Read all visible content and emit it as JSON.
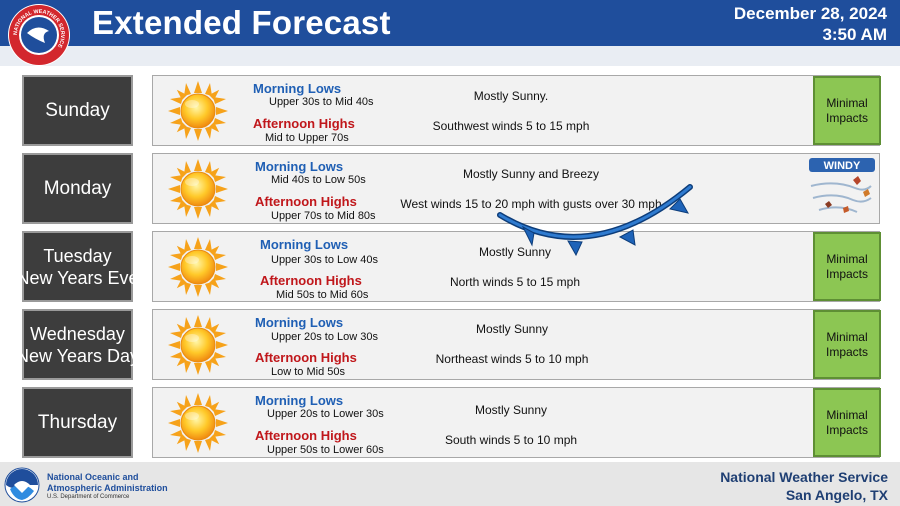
{
  "header": {
    "title": "Extended Forecast",
    "date": "December 28, 2024",
    "time": "3:50 AM",
    "logo_text": "NATIONAL WEATHER SERVICE",
    "bar_color": "#1f4e9c"
  },
  "labels": {
    "morning": "Morning Lows",
    "afternoon": "Afternoon Highs"
  },
  "days": [
    {
      "name_lines": [
        "Sunday"
      ],
      "low": "Upper 30s to Mid 40s",
      "high": "Mid to Upper 70s",
      "sky": "Mostly Sunny.",
      "wind": "Southwest winds 5 to 15 mph",
      "impact": [
        "Minimal",
        "Impacts"
      ],
      "icon": "sun-icon"
    },
    {
      "name_lines": [
        "Monday"
      ],
      "low": "Mid 40s to Low 50s",
      "high": "Upper 70s to Mid 80s",
      "sky": "Mostly Sunny and Breezy",
      "wind": "West winds 15 to 20 mph with gusts over 30 mph",
      "badge": "WINDY",
      "icon": "sun-icon"
    },
    {
      "name_lines": [
        "Tuesday",
        "New Years Eve"
      ],
      "low": "Upper 30s to Low 40s",
      "high": "Mid 50s to Mid 60s",
      "sky": "Mostly Sunny",
      "wind": "North winds 5 to 15 mph",
      "impact": [
        "Minimal",
        "Impacts"
      ],
      "icon": "sun-icon"
    },
    {
      "name_lines": [
        "Wednesday",
        "New Years Day"
      ],
      "low": "Upper 20s to Low 30s",
      "high": "Low to Mid 50s",
      "sky": "Mostly Sunny",
      "wind": "Northeast winds 5 to 10 mph",
      "impact": [
        "Minimal",
        "Impacts"
      ],
      "icon": "sun-icon"
    },
    {
      "name_lines": [
        "Thursday"
      ],
      "low": "Upper 20s to Lower 30s",
      "high": "Upper 50s to Lower 60s",
      "sky": "Mostly Sunny",
      "wind": "South winds 5 to 10 mph",
      "impact": [
        "Minimal",
        "Impacts"
      ],
      "icon": "sun-icon"
    }
  ],
  "colors": {
    "low_label": "#1f5fb4",
    "high_label": "#c0171b",
    "impact_fill": "#8cc653",
    "day_box": "#3d3d3d",
    "cold_front": "#1e63b8"
  },
  "footer": {
    "noaa_line1": "National Oceanic and",
    "noaa_line2": "Atmospheric Administration",
    "noaa_dept": "U.S. Department of Commerce",
    "nws_line1": "National Weather Service",
    "nws_line2": "San Angelo, TX"
  }
}
